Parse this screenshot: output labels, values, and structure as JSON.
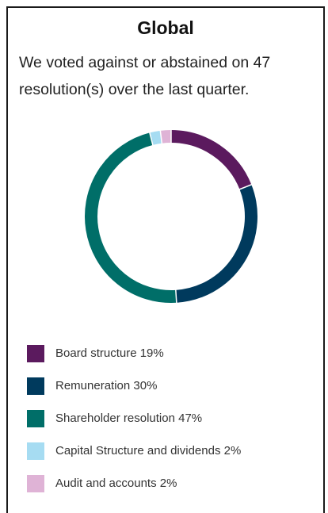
{
  "header": {
    "title": "Global",
    "subtitle": "We voted against or abstained on 47 resolution(s) over the last quarter."
  },
  "chart_data": {
    "type": "pie",
    "variant": "donut",
    "title": "Global",
    "categories": [
      "Board structure",
      "Remuneration",
      "Shareholder resolution",
      "Capital Structure and dividends",
      "Audit and accounts"
    ],
    "values": [
      19,
      30,
      47,
      2,
      2
    ],
    "unit": "%",
    "colors": [
      "#5b1a5e",
      "#003a5d",
      "#006e68",
      "#a6dcf2",
      "#dfb3d6"
    ],
    "legend_position": "bottom",
    "legend_labels": [
      "Board structure 19%",
      "Remuneration 30%",
      "Shareholder resolution 47%",
      "Capital Structure and dividends 2%",
      "Audit and accounts 2%"
    ]
  }
}
